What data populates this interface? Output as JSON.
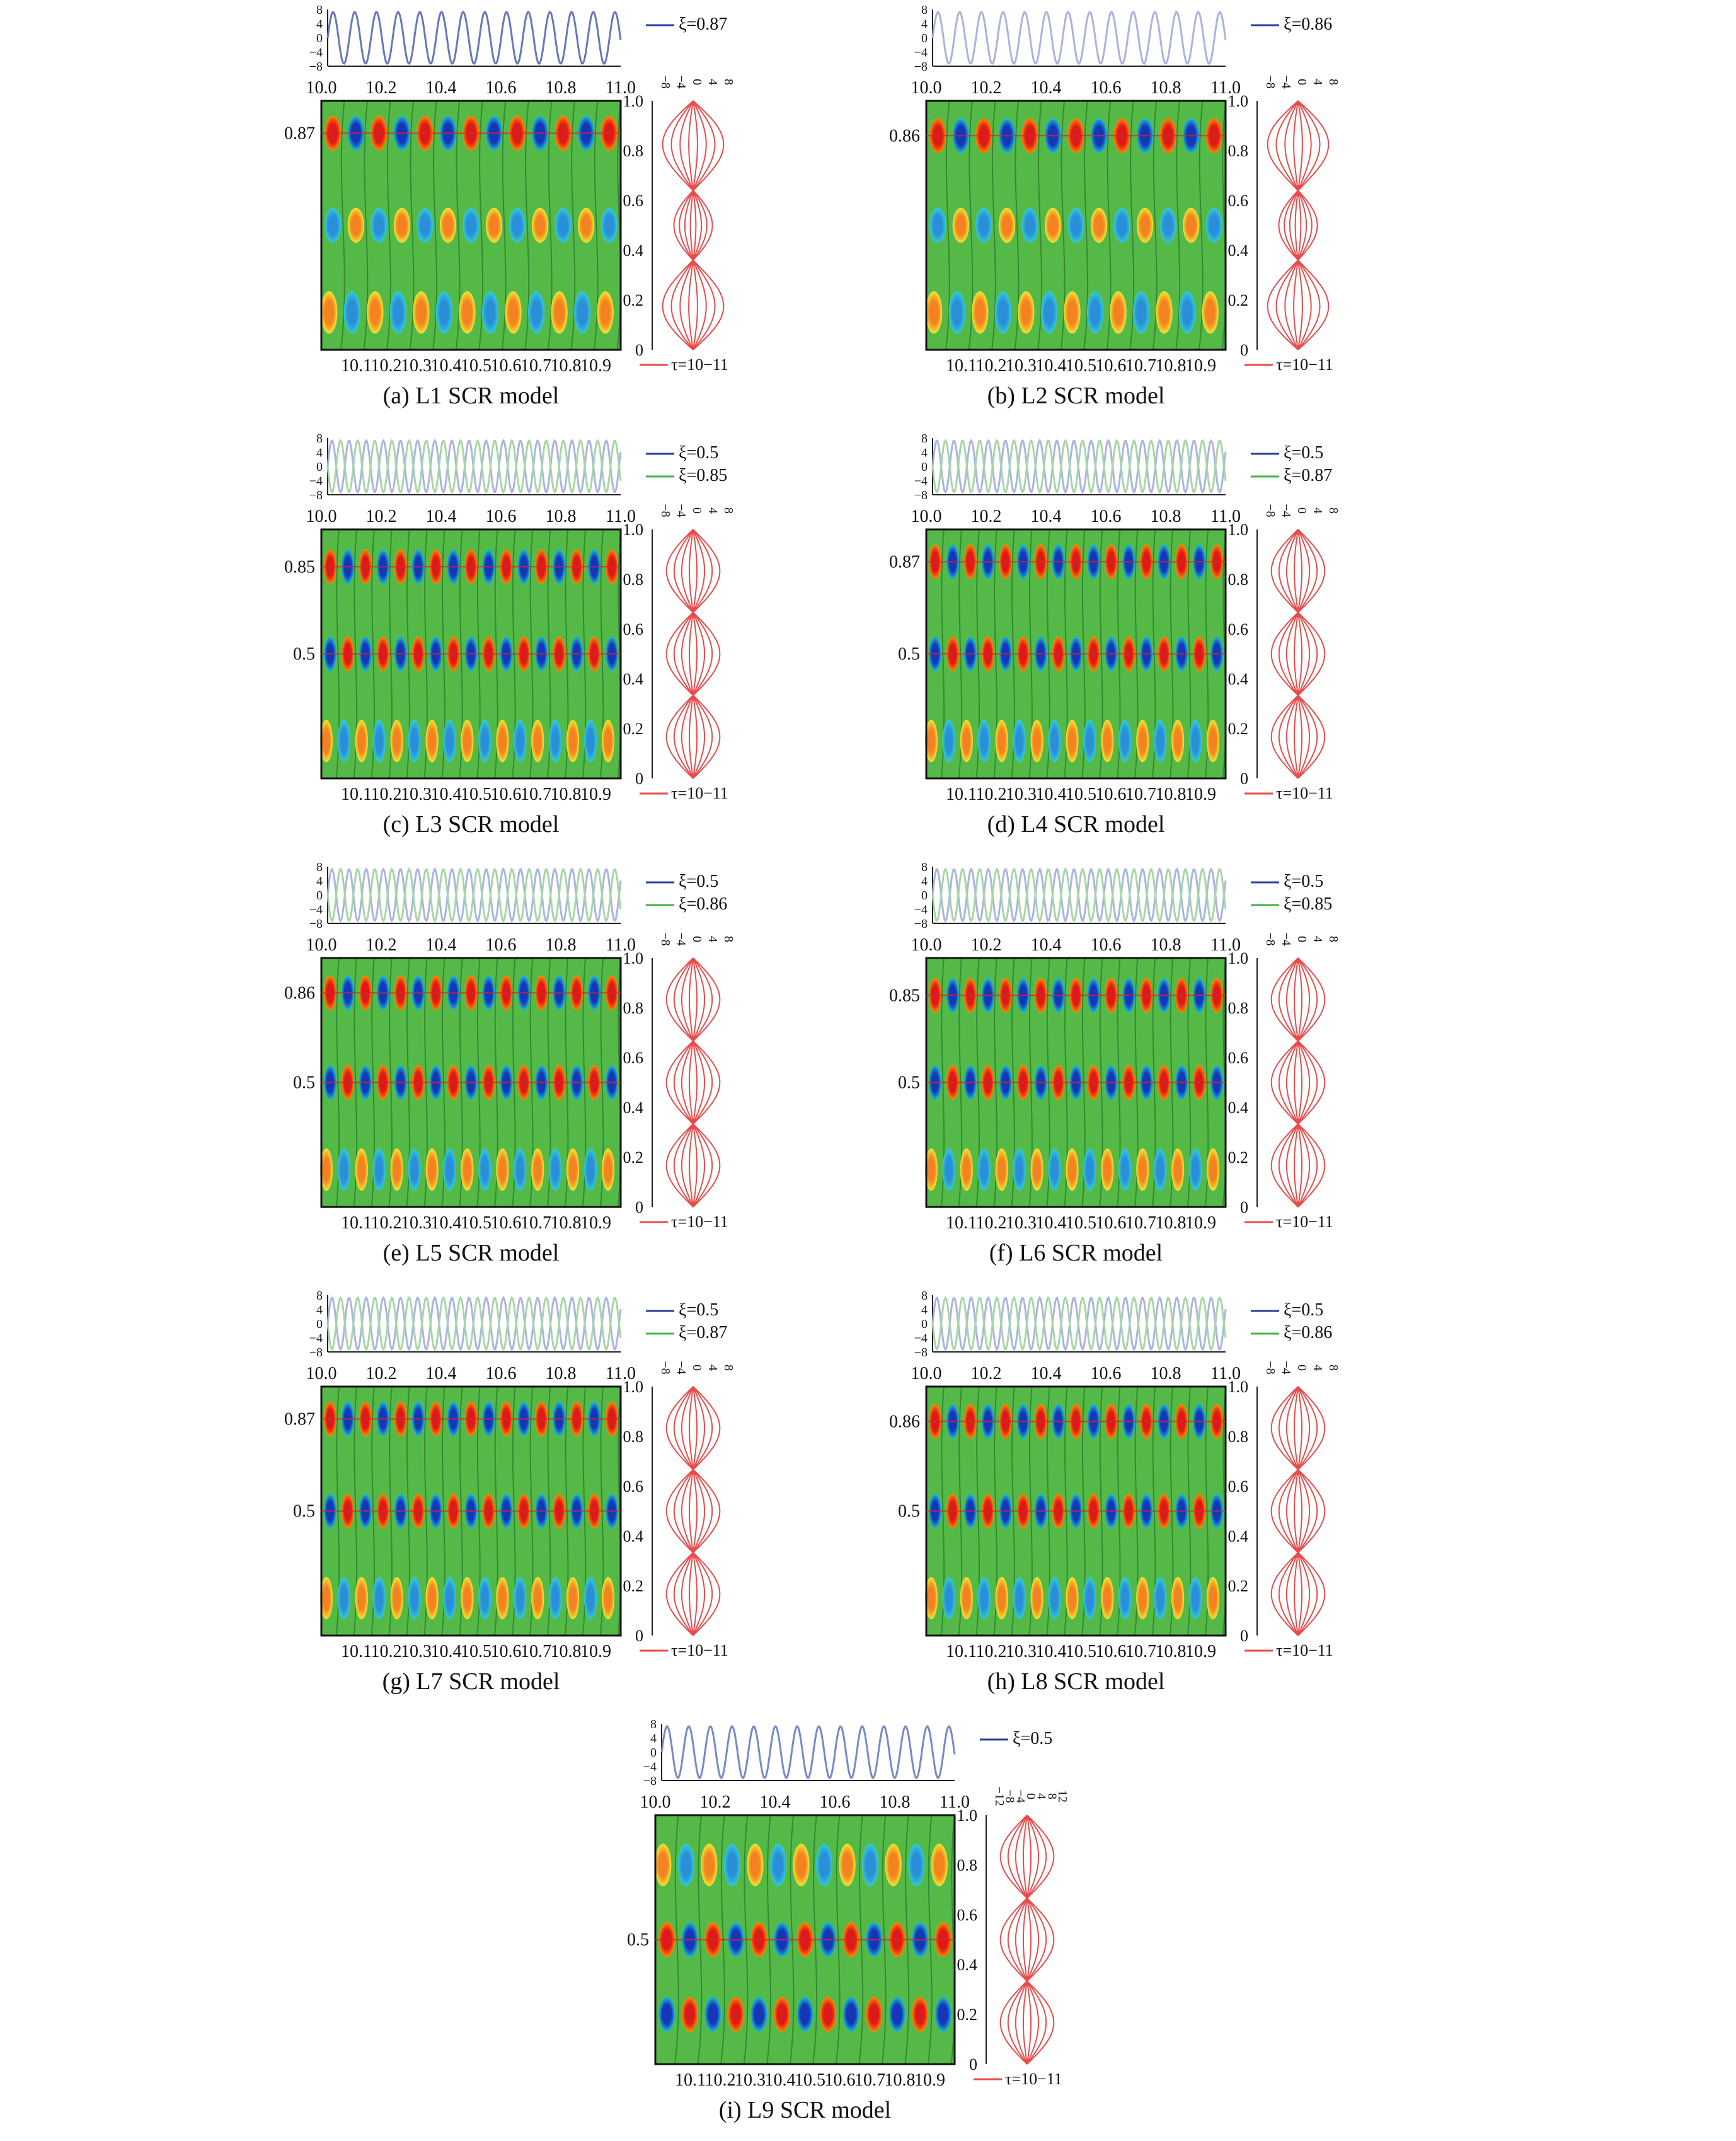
{
  "chart_data": [
    {
      "id": "a",
      "type": "heatmap",
      "caption": "(a) L1 SCR model",
      "time_ticks": [
        "10.0",
        "10.2",
        "10.4",
        "10.6",
        "10.8",
        "11.0"
      ],
      "bottom_ticks": [
        "10.1",
        "10.2",
        "10.3",
        "10.4",
        "10.5",
        "10.6",
        "10.7",
        "10.8",
        "10.9"
      ],
      "xi_ticks": [
        "0",
        "0.2",
        "0.4",
        "0.6",
        "0.8",
        "1.0"
      ],
      "amp_ticks": [
        "−8",
        "−4",
        "0",
        "4",
        "8"
      ],
      "series": [
        {
          "name": "ξ=0.87",
          "xi": 0.87,
          "color": "#6677bb"
        }
      ],
      "mark_labels": [
        "0.87"
      ],
      "profile_legend": "τ=10−11",
      "mode": "upper",
      "antinodes": [
        0.87,
        0.5,
        0.15
      ],
      "period": 0.074,
      "amp_range": [
        -8,
        8
      ],
      "profile_amp": 8
    },
    {
      "id": "b",
      "type": "heatmap",
      "caption": "(b) L2 SCR model",
      "time_ticks": [
        "10.0",
        "10.2",
        "10.4",
        "10.6",
        "10.8",
        "11.0"
      ],
      "bottom_ticks": [
        "10.1",
        "10.2",
        "10.3",
        "10.4",
        "10.5",
        "10.6",
        "10.7",
        "10.8",
        "10.9"
      ],
      "xi_ticks": [
        "0",
        "0.2",
        "0.4",
        "0.6",
        "0.8",
        "1.0"
      ],
      "amp_ticks": [
        "−8",
        "−4",
        "0",
        "4",
        "8"
      ],
      "series": [
        {
          "name": "ξ=0.86",
          "xi": 0.86,
          "color": "#a9b3dd"
        }
      ],
      "mark_labels": [
        "0.86"
      ],
      "profile_legend": "τ=10−11",
      "mode": "upper",
      "antinodes": [
        0.86,
        0.5,
        0.15
      ],
      "period": 0.074,
      "amp_range": [
        -8,
        8
      ],
      "profile_amp": 8
    },
    {
      "id": "c",
      "type": "heatmap",
      "caption": "(c) L3 SCR model",
      "time_ticks": [
        "10.0",
        "10.2",
        "10.4",
        "10.6",
        "10.8",
        "11.0"
      ],
      "bottom_ticks": [
        "10.1",
        "10.2",
        "10.3",
        "10.4",
        "10.5",
        "10.6",
        "10.7",
        "10.8",
        "10.9"
      ],
      "xi_ticks": [
        "0",
        "0.2",
        "0.4",
        "0.6",
        "0.8",
        "1.0"
      ],
      "amp_ticks": [
        "−8",
        "−4",
        "0",
        "4",
        "8"
      ],
      "series": [
        {
          "name": "ξ=0.5",
          "xi": 0.5,
          "color": "#aab4e0"
        },
        {
          "name": "ξ=0.85",
          "xi": 0.85,
          "color": "#a6d6a6"
        }
      ],
      "mark_labels": [
        "0.85",
        "0.5"
      ],
      "profile_legend": "τ=10−11",
      "mode": "mid",
      "antinodes": [
        0.85,
        0.5,
        0.15
      ],
      "period": 0.0585,
      "amp_range": [
        -8,
        8
      ],
      "profile_amp": 8
    },
    {
      "id": "d",
      "type": "heatmap",
      "caption": "(d) L4 SCR model",
      "time_ticks": [
        "10.0",
        "10.2",
        "10.4",
        "10.6",
        "10.8",
        "11.0"
      ],
      "bottom_ticks": [
        "10.1",
        "10.2",
        "10.3",
        "10.4",
        "10.5",
        "10.6",
        "10.7",
        "10.8",
        "10.9"
      ],
      "xi_ticks": [
        "0",
        "0.2",
        "0.4",
        "0.6",
        "0.8",
        "1.0"
      ],
      "amp_ticks": [
        "−8",
        "−4",
        "0",
        "4",
        "8"
      ],
      "series": [
        {
          "name": "ξ=0.5",
          "xi": 0.5,
          "color": "#aab4e0"
        },
        {
          "name": "ξ=0.87",
          "xi": 0.87,
          "color": "#a6d6a6"
        }
      ],
      "mark_labels": [
        "0.87",
        "0.5"
      ],
      "profile_legend": "τ=10−11",
      "mode": "mid",
      "antinodes": [
        0.87,
        0.5,
        0.15
      ],
      "period": 0.0585,
      "amp_range": [
        -8,
        8
      ],
      "profile_amp": 8
    },
    {
      "id": "e",
      "type": "heatmap",
      "caption": "(e) L5 SCR model",
      "time_ticks": [
        "10.0",
        "10.2",
        "10.4",
        "10.6",
        "10.8",
        "11.0"
      ],
      "bottom_ticks": [
        "10.1",
        "10.2",
        "10.3",
        "10.4",
        "10.5",
        "10.6",
        "10.7",
        "10.8",
        "10.9"
      ],
      "xi_ticks": [
        "0",
        "0.2",
        "0.4",
        "0.6",
        "0.8",
        "1.0"
      ],
      "amp_ticks": [
        "−8",
        "−4",
        "0",
        "4",
        "8"
      ],
      "series": [
        {
          "name": "ξ=0.5",
          "xi": 0.5,
          "color": "#aab4e0"
        },
        {
          "name": "ξ=0.86",
          "xi": 0.86,
          "color": "#a6d6a6"
        }
      ],
      "mark_labels": [
        "0.86",
        "0.5"
      ],
      "profile_legend": "τ=10−11",
      "mode": "mid",
      "antinodes": [
        0.86,
        0.5,
        0.15
      ],
      "period": 0.0585,
      "amp_range": [
        -8,
        8
      ],
      "profile_amp": 8
    },
    {
      "id": "f",
      "type": "heatmap",
      "caption": "(f) L6 SCR model",
      "time_ticks": [
        "10.0",
        "10.2",
        "10.4",
        "10.6",
        "10.8",
        "11.0"
      ],
      "bottom_ticks": [
        "10.1",
        "10.2",
        "10.3",
        "10.4",
        "10.5",
        "10.6",
        "10.7",
        "10.8",
        "10.9"
      ],
      "xi_ticks": [
        "0",
        "0.2",
        "0.4",
        "0.6",
        "0.8",
        "1.0"
      ],
      "amp_ticks": [
        "−8",
        "−4",
        "0",
        "4",
        "8"
      ],
      "series": [
        {
          "name": "ξ=0.5",
          "xi": 0.5,
          "color": "#aab4e0"
        },
        {
          "name": "ξ=0.85",
          "xi": 0.85,
          "color": "#a6d6a6"
        }
      ],
      "mark_labels": [
        "0.85",
        "0.5"
      ],
      "profile_legend": "τ=10−11",
      "mode": "mid",
      "antinodes": [
        0.85,
        0.5,
        0.15
      ],
      "period": 0.0585,
      "amp_range": [
        -8,
        8
      ],
      "profile_amp": 8
    },
    {
      "id": "g",
      "type": "heatmap",
      "caption": "(g) L7 SCR model",
      "time_ticks": [
        "10.0",
        "10.2",
        "10.4",
        "10.6",
        "10.8",
        "11.0"
      ],
      "bottom_ticks": [
        "10.1",
        "10.2",
        "10.3",
        "10.4",
        "10.5",
        "10.6",
        "10.7",
        "10.8",
        "10.9"
      ],
      "xi_ticks": [
        "0",
        "0.2",
        "0.4",
        "0.6",
        "0.8",
        "1.0"
      ],
      "amp_ticks": [
        "−8",
        "−4",
        "0",
        "4",
        "8"
      ],
      "series": [
        {
          "name": "ξ=0.5",
          "xi": 0.5,
          "color": "#aab4e0"
        },
        {
          "name": "ξ=0.87",
          "xi": 0.87,
          "color": "#a6d6a6"
        }
      ],
      "mark_labels": [
        "0.87",
        "0.5"
      ],
      "profile_legend": "τ=10−11",
      "mode": "mid",
      "antinodes": [
        0.87,
        0.5,
        0.15
      ],
      "period": 0.0585,
      "amp_range": [
        -8,
        8
      ],
      "profile_amp": 8
    },
    {
      "id": "h",
      "type": "heatmap",
      "caption": "(h) L8 SCR model",
      "time_ticks": [
        "10.0",
        "10.2",
        "10.4",
        "10.6",
        "10.8",
        "11.0"
      ],
      "bottom_ticks": [
        "10.1",
        "10.2",
        "10.3",
        "10.4",
        "10.5",
        "10.6",
        "10.7",
        "10.8",
        "10.9"
      ],
      "xi_ticks": [
        "0",
        "0.2",
        "0.4",
        "0.6",
        "0.8",
        "1.0"
      ],
      "amp_ticks": [
        "−8",
        "−4",
        "0",
        "4",
        "8"
      ],
      "series": [
        {
          "name": "ξ=0.5",
          "xi": 0.5,
          "color": "#aab4e0"
        },
        {
          "name": "ξ=0.86",
          "xi": 0.86,
          "color": "#a6d6a6"
        }
      ],
      "mark_labels": [
        "0.86",
        "0.5"
      ],
      "profile_legend": "τ=10−11",
      "mode": "mid",
      "antinodes": [
        0.86,
        0.5,
        0.15
      ],
      "period": 0.0585,
      "amp_range": [
        -8,
        8
      ],
      "profile_amp": 8
    },
    {
      "id": "i",
      "type": "heatmap",
      "caption": "(i) L9 SCR model",
      "time_ticks": [
        "10.0",
        "10.2",
        "10.4",
        "10.6",
        "10.8",
        "11.0"
      ],
      "bottom_ticks": [
        "10.1",
        "10.2",
        "10.3",
        "10.4",
        "10.5",
        "10.6",
        "10.7",
        "10.8",
        "10.9"
      ],
      "xi_ticks": [
        "0",
        "0.2",
        "0.4",
        "0.6",
        "0.8",
        "1.0"
      ],
      "amp_ticks": [
        "−8",
        "−4",
        "0",
        "4",
        "8"
      ],
      "profile_amp_ticks": [
        "−12",
        "−8",
        "−4",
        "0",
        "4",
        "8",
        "12"
      ],
      "series": [
        {
          "name": "ξ=0.5",
          "xi": 0.5,
          "color": "#7788cc"
        }
      ],
      "mark_labels": [
        "0.5"
      ],
      "profile_legend": "τ=10−11",
      "mode": "l9",
      "antinodes": [
        0.5,
        0.2,
        0.8
      ],
      "period": 0.074,
      "amp_range": [
        -8,
        8
      ],
      "profile_amp": 12
    }
  ]
}
